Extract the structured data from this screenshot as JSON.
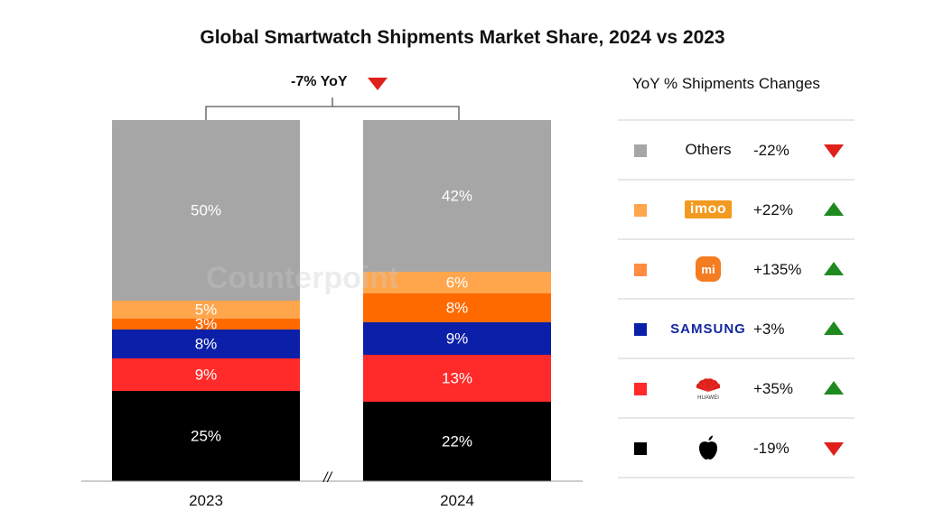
{
  "chart_data": {
    "type": "stacked-bar",
    "title": "Global Smartwatch Shipments Market Share, 2024 vs 2023",
    "categories": [
      "2023",
      "2024"
    ],
    "series": [
      {
        "name": "Apple",
        "color": "#000000",
        "values": [
          25,
          22
        ],
        "labels": [
          "25%",
          "22%"
        ]
      },
      {
        "name": "Huawei",
        "color": "#ff2a2a",
        "values": [
          9,
          13
        ],
        "labels": [
          "9%",
          "13%"
        ]
      },
      {
        "name": "Samsung",
        "color": "#0b1fa8",
        "values": [
          8,
          9
        ],
        "labels": [
          "8%",
          "9%"
        ]
      },
      {
        "name": "Xiaomi",
        "color": "#ff6a00",
        "values": [
          3,
          8
        ],
        "labels": [
          "3%",
          "8%"
        ]
      },
      {
        "name": "imoo",
        "color": "#ffa64d",
        "values": [
          5,
          6
        ],
        "labels": [
          "5%",
          "6%"
        ]
      },
      {
        "name": "Others",
        "color": "#a6a6a6",
        "values": [
          50,
          42
        ],
        "labels": [
          "50%",
          "42%"
        ]
      }
    ],
    "ylim": [
      0,
      100
    ],
    "annotation": {
      "text": "-7% YoY",
      "direction": "down"
    },
    "axis_break": "//",
    "watermark": "Counterpoint",
    "legend": {
      "title": "YoY % Shipments Changes",
      "items": [
        {
          "brand": "Others",
          "color": "#a6a6a6",
          "change": "-22%",
          "direction": "down"
        },
        {
          "brand": "imoo",
          "color": "#ffa64d",
          "change": "+22%",
          "direction": "up"
        },
        {
          "brand": "mi",
          "color": "#ff8c40",
          "change": "+135%",
          "direction": "up"
        },
        {
          "brand": "SAMSUNG",
          "color": "#0b1fa8",
          "change": "+3%",
          "direction": "up"
        },
        {
          "brand": "HUAWEI",
          "color": "#ff2a2a",
          "change": "+35%",
          "direction": "up"
        },
        {
          "brand": "Apple",
          "color": "#000000",
          "change": "-19%",
          "direction": "down"
        }
      ]
    }
  }
}
